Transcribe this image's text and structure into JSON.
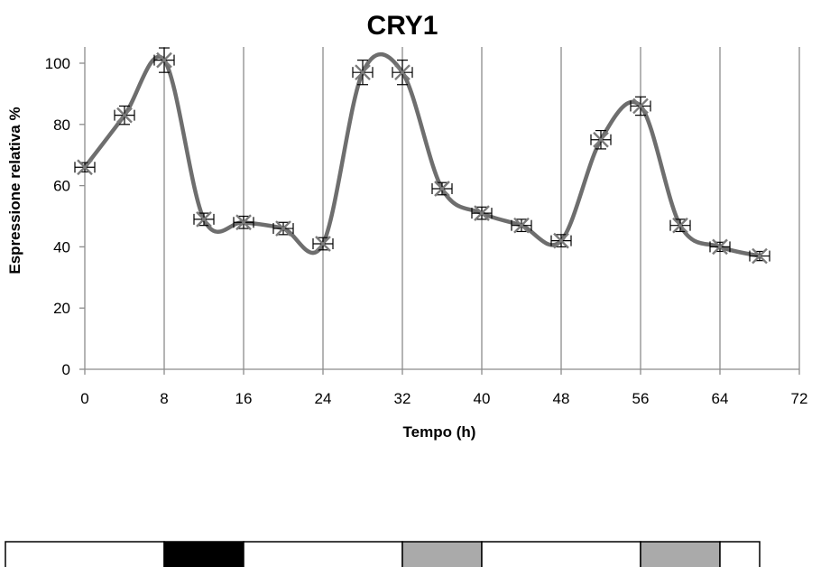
{
  "chart_data": {
    "type": "line",
    "title": "CRY1",
    "xlabel": "Tempo (h)",
    "ylabel": "Espressione relativa %",
    "xlim": [
      0,
      72
    ],
    "ylim": [
      0,
      100
    ],
    "x_ticks": [
      0,
      8,
      16,
      24,
      32,
      40,
      48,
      56,
      64,
      72
    ],
    "y_ticks": [
      0,
      20,
      40,
      60,
      80,
      100
    ],
    "grid": "vertical",
    "line_color": "#6e6e6e",
    "series": [
      {
        "x": [
          0,
          4,
          8,
          12,
          16,
          20,
          24,
          28,
          32,
          36,
          40,
          44,
          48,
          52,
          56,
          60,
          64,
          68
        ],
        "values": [
          66,
          83,
          101,
          49,
          48,
          46,
          41,
          97,
          97,
          59,
          51,
          47,
          42,
          75,
          86,
          47,
          40,
          37
        ],
        "error": [
          1.5,
          3,
          4,
          2,
          2,
          2,
          2,
          4,
          4,
          2,
          2,
          2,
          2,
          3,
          3,
          2,
          1.5,
          1.5
        ]
      }
    ],
    "light_bar": {
      "x_start": -8,
      "x_end": 68,
      "segments": [
        {
          "start": -8,
          "end": 8,
          "color": "#ffffff"
        },
        {
          "start": 8,
          "end": 16,
          "color": "#000000"
        },
        {
          "start": 16,
          "end": 32,
          "color": "#ffffff"
        },
        {
          "start": 32,
          "end": 40,
          "color": "#aaaaaa"
        },
        {
          "start": 40,
          "end": 56,
          "color": "#ffffff"
        },
        {
          "start": 56,
          "end": 64,
          "color": "#aaaaaa"
        },
        {
          "start": 64,
          "end": 68,
          "color": "#ffffff"
        }
      ]
    }
  }
}
